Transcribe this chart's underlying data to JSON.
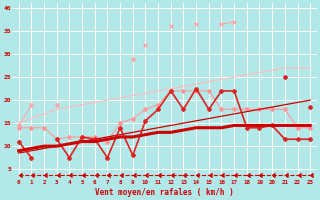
{
  "xlabel": "Vent moyen/en rafales ( km/h )",
  "background_color": "#b2e8e8",
  "grid_color": "#ffffff",
  "x_values": [
    0,
    1,
    2,
    3,
    4,
    5,
    6,
    7,
    8,
    9,
    10,
    11,
    12,
    13,
    14,
    15,
    16,
    17,
    18,
    19,
    20,
    21,
    22,
    23
  ],
  "ylim": [
    3,
    41
  ],
  "xlim": [
    -0.5,
    23.5
  ],
  "yticks": [
    5,
    10,
    15,
    20,
    25,
    30,
    35,
    40
  ],
  "series": [
    {
      "color": "#ffaaaa",
      "linewidth": 0.8,
      "marker": "D",
      "markersize": 2.0,
      "zorder": 2,
      "values": [
        14.5,
        19,
        null,
        19,
        null,
        null,
        null,
        null,
        null,
        29,
        null,
        null,
        null,
        null,
        null,
        null,
        null,
        null,
        null,
        null,
        null,
        null,
        null,
        null
      ]
    },
    {
      "color": "#ffaaaa",
      "linewidth": 0.8,
      "marker": "x",
      "markersize": 3,
      "zorder": 2,
      "values": [
        null,
        null,
        null,
        null,
        null,
        null,
        null,
        null,
        null,
        null,
        32,
        null,
        36,
        null,
        36.5,
        null,
        36.5,
        37,
        null,
        null,
        null,
        null,
        null,
        null
      ]
    },
    {
      "color": "#ff9999",
      "linewidth": 0.8,
      "marker": "D",
      "markersize": 2.0,
      "zorder": 3,
      "values": [
        14,
        14,
        14,
        11.5,
        12,
        12,
        12,
        11,
        15,
        16,
        18,
        19,
        22,
        22,
        22,
        22,
        18,
        18,
        18,
        18,
        18,
        18,
        14,
        14
      ]
    },
    {
      "color": "#ffbbbb",
      "linewidth": 0.8,
      "marker": null,
      "markersize": 0,
      "zorder": 2,
      "values": [
        15,
        16,
        17,
        18,
        18.5,
        19,
        19.5,
        20,
        20.5,
        21,
        21.5,
        22,
        22.5,
        23,
        23.5,
        24,
        24.5,
        25,
        25.5,
        26,
        26.5,
        27,
        27,
        27
      ]
    },
    {
      "color": "#dd2222",
      "linewidth": 1.2,
      "marker": "P",
      "markersize": 2.5,
      "zorder": 4,
      "values": [
        11,
        7.5,
        null,
        11.5,
        7.5,
        12,
        11.5,
        7.5,
        14,
        8,
        15.5,
        18,
        22,
        18,
        22.5,
        18,
        22,
        22,
        14,
        14,
        14.5,
        11.5,
        11.5,
        11.5
      ]
    },
    {
      "color": "#dd2222",
      "linewidth": 1.2,
      "marker": "P",
      "markersize": 2.5,
      "zorder": 4,
      "values": [
        null,
        null,
        null,
        null,
        null,
        null,
        null,
        null,
        null,
        null,
        null,
        null,
        null,
        null,
        null,
        null,
        null,
        null,
        null,
        null,
        null,
        25,
        null,
        18.5
      ]
    },
    {
      "color": "#cc0000",
      "linewidth": 2.2,
      "marker": null,
      "markersize": 0,
      "zorder": 5,
      "values": [
        9,
        9.5,
        10,
        10,
        10.5,
        11,
        11,
        11.5,
        12,
        12,
        12.5,
        13,
        13,
        13.5,
        14,
        14,
        14,
        14.5,
        14.5,
        14.5,
        14.5,
        14.5,
        14.5,
        14.5
      ]
    },
    {
      "color": "#cc0000",
      "linewidth": 0.9,
      "marker": null,
      "markersize": 0,
      "zorder": 3,
      "values": [
        8.5,
        9,
        9.5,
        10,
        10.5,
        11,
        11.5,
        12,
        12.5,
        13,
        13.5,
        14,
        14.5,
        15,
        15.5,
        16,
        16.5,
        17,
        17.5,
        18,
        18.5,
        19,
        19.5,
        20
      ]
    },
    {
      "color": "#cc0000",
      "linewidth": 0.8,
      "marker": 4,
      "markersize": 3,
      "is_dashed": true,
      "zorder": 6,
      "values": [
        3.8,
        3.8,
        3.8,
        3.8,
        3.8,
        3.8,
        3.8,
        3.8,
        3.8,
        3.8,
        3.8,
        3.8,
        3.8,
        3.8,
        3.8,
        3.8,
        3.8,
        3.8,
        3.8,
        3.8,
        3.8,
        3.8,
        3.8,
        3.8
      ]
    }
  ]
}
